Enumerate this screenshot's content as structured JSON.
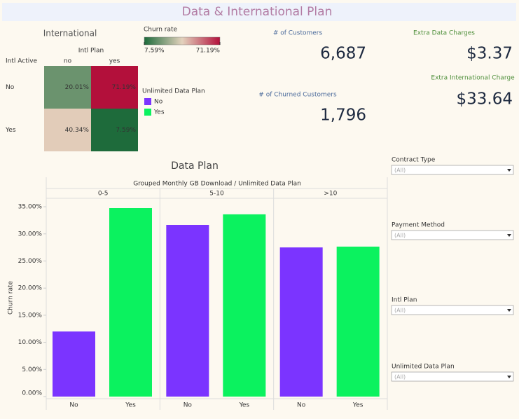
{
  "header": {
    "title": "Data & International Plan"
  },
  "chart_data": [
    {
      "type": "heatmap",
      "title": "International",
      "x_label": "Intl Plan",
      "y_label": "Intl Active",
      "categories": [
        "no",
        "yes"
      ],
      "rows": [
        "No",
        "Yes"
      ],
      "values": [
        [
          20.01,
          71.19
        ],
        [
          40.34,
          7.59
        ]
      ],
      "value_labels": [
        [
          "20.01%",
          "71.19%"
        ],
        [
          "40.34%",
          "7.59%"
        ]
      ],
      "legend_title": "Churn rate",
      "color_range": [
        7.59,
        71.19
      ],
      "colors": [
        "#1e6b3b",
        "#e3d2bd",
        "#b3103b"
      ],
      "legend_ticks": [
        {
          "value": 7.59,
          "label": "7.59%"
        },
        {
          "value": 71.19,
          "label": "71.19%"
        }
      ]
    },
    {
      "type": "bar",
      "title": "Data Plan",
      "subtitle": "Grouped Monthly GB Download / Unlimited Data Plan",
      "y_label": "Churn rate",
      "legend_title": "Unlimited Data Plan",
      "categories": [
        "0-5",
        "5-10",
        ">10"
      ],
      "series": [
        {
          "name": "No",
          "color": "#7b34ff",
          "values": [
            12.0,
            31.65,
            27.5
          ]
        },
        {
          "name": "Yes",
          "color": "#0bf25f",
          "values": [
            34.75,
            33.6,
            27.65
          ]
        }
      ],
      "ylim": [
        0,
        36.56
      ],
      "yticks": [
        {
          "value": 0,
          "label": "0.00%"
        },
        {
          "value": 5,
          "label": "5.00%"
        },
        {
          "value": 10,
          "label": "10.00%"
        },
        {
          "value": 15,
          "label": "15.00%"
        },
        {
          "value": 20,
          "label": "20.00%"
        },
        {
          "value": 25,
          "label": "25.00%"
        },
        {
          "value": 30,
          "label": "30.00%"
        },
        {
          "value": 35,
          "label": "35.00%"
        }
      ],
      "grid": false
    }
  ],
  "kpis": [
    {
      "label": "# of Customers",
      "value": "6,687"
    },
    {
      "label": "# of Churned Customers",
      "value": "1,796"
    },
    {
      "label": "Extra Data Charges",
      "value": "$3.37"
    },
    {
      "label": "Extra International Charge",
      "value": "$33.64"
    }
  ],
  "filters": [
    {
      "label": "Contract Type",
      "value": "(All)"
    },
    {
      "label": "Payment Method",
      "value": "(All)"
    },
    {
      "label": "Intl Plan",
      "value": "(All)"
    },
    {
      "label": "Unlimited Data Plan",
      "value": "(All)"
    }
  ]
}
